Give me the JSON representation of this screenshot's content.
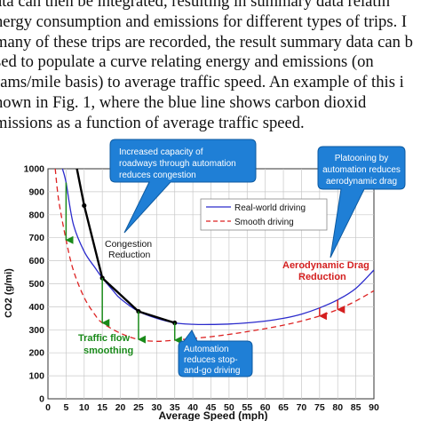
{
  "paragraph": [
    "ata can then be integrated, resulting in summary data relatin",
    "nergy consumption and emissions for different types of trips. I",
    "many of these trips are recorded, the result summary data can b",
    "sed to populate a curve relating energy and emissions (on",
    "rams/mile basis) to average traffic speed. An example of this i",
    "hown in Fig. 1, where the blue line shows carbon dioxid",
    "missions as a function of average traffic speed."
  ],
  "callouts": {
    "capacity": [
      "Increased capacity of",
      "roadways through automation",
      "reduces congestion"
    ],
    "platooning": [
      "Platooning by",
      "automation reduces",
      "aerodynamic drag"
    ],
    "stop_and_go": [
      "Automation",
      "reduces stop-",
      "and-go driving"
    ]
  },
  "annotations": {
    "congestion": [
      "Congestion",
      "Reduction"
    ],
    "smoothing": [
      "Traffic flow",
      "smoothing"
    ],
    "aero": [
      "Aerodynamic Drag",
      "Reduction"
    ]
  },
  "colors": {
    "real_world": "#2b2bcc",
    "smooth": "#dd2222",
    "congestion_line": "#000000",
    "green_arrow": "#1a8a1a",
    "callout_fill": "#1f7fd6",
    "aero_text": "#d42020"
  },
  "chart_data": {
    "type": "line",
    "xlabel": "Average Speed (mph)",
    "ylabel": "CO2 (g/mi)",
    "xlim": [
      0,
      90
    ],
    "ylim": [
      0,
      1000
    ],
    "x_ticks": [
      "0",
      "5",
      "10",
      "15",
      "20",
      "25",
      "30",
      "35",
      "40",
      "45",
      "50",
      "55",
      "60",
      "65",
      "70",
      "75",
      "80",
      "85",
      "90"
    ],
    "y_ticks": [
      "0",
      "100",
      "200",
      "300",
      "400",
      "500",
      "600",
      "700",
      "800",
      "900",
      "1000"
    ],
    "grid": true,
    "legend_position": "top-right",
    "series": [
      {
        "name": "Real-world driving",
        "style": "solid",
        "x": [
          4,
          5,
          7,
          10,
          13,
          15,
          18,
          20,
          25,
          30,
          35,
          40,
          45,
          50,
          55,
          60,
          65,
          70,
          75,
          80,
          85,
          90
        ],
        "y": [
          1000,
          940,
          760,
          640,
          570,
          525,
          470,
          435,
          380,
          350,
          330,
          324,
          323,
          325,
          330,
          338,
          350,
          368,
          395,
          430,
          480,
          560
        ]
      },
      {
        "name": "Smooth driving",
        "style": "dashed",
        "x": [
          2,
          3,
          5,
          7,
          10,
          13,
          15,
          20,
          25,
          30,
          35,
          40,
          45,
          50,
          55,
          60,
          65,
          70,
          75,
          80,
          85,
          90
        ],
        "y": [
          1000,
          860,
          690,
          560,
          440,
          365,
          330,
          285,
          258,
          250,
          255,
          262,
          270,
          280,
          292,
          305,
          320,
          338,
          360,
          388,
          425,
          470
        ]
      },
      {
        "name": "Congestion Reduction",
        "style": "bold",
        "x": [
          8,
          10,
          15,
          25,
          35
        ],
        "y": [
          1000,
          840,
          525,
          380,
          330
        ]
      }
    ],
    "arrows": [
      {
        "color": "green",
        "x": 5,
        "from": 940,
        "to": 690
      },
      {
        "color": "green",
        "x": 15,
        "from": 525,
        "to": 330
      },
      {
        "color": "green",
        "x": 25,
        "from": 380,
        "to": 258
      },
      {
        "color": "green",
        "x": 35,
        "from": 330,
        "to": 255
      },
      {
        "color": "red",
        "x": 75,
        "from": 395,
        "to": 360
      },
      {
        "color": "red",
        "x": 80,
        "from": 430,
        "to": 388
      }
    ]
  }
}
